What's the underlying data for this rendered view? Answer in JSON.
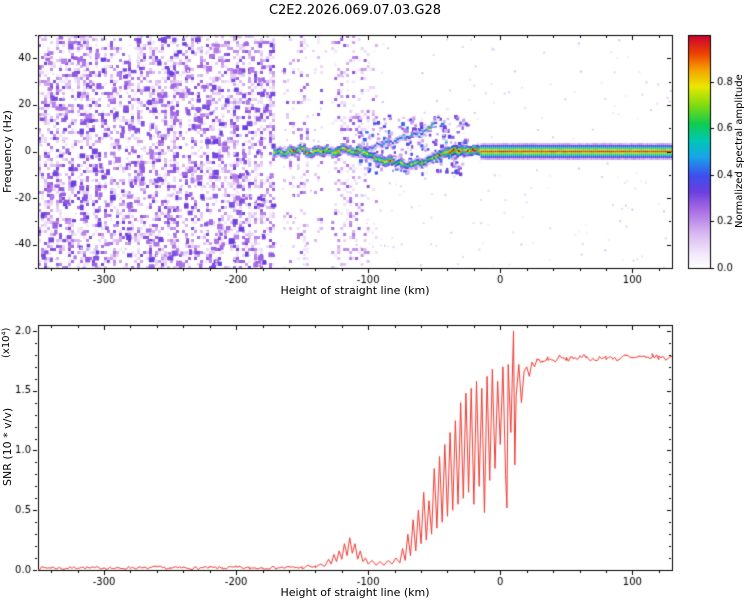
{
  "chart_data": [
    {
      "type": "heatmap",
      "title": "C2E2.2026.069.07.03.G28",
      "xlabel": "Height of straight line (km)",
      "ylabel": "Frequency (Hz)",
      "xlim": [
        -350,
        130
      ],
      "ylim": [
        -50,
        50
      ],
      "xticks": [
        -300,
        -200,
        -100,
        0,
        100
      ],
      "xtick_labels": [
        "-300",
        "-200",
        "-100",
        "0",
        "100"
      ],
      "xminor": 20,
      "yticks": [
        -40,
        -20,
        0,
        20,
        40
      ],
      "ytick_labels": [
        "-40",
        "-20",
        "0",
        "20",
        "40"
      ],
      "yminor": 10,
      "grid": false,
      "colorbar": {
        "label": "Normalized spectral amplitude",
        "range": [
          0,
          1
        ],
        "ticks": [
          0,
          0.2,
          0.4,
          0.6,
          0.8
        ],
        "tick_labels": [
          "0.0",
          "0.2",
          "0.4",
          "0.6",
          "0.8"
        ],
        "colormap": [
          {
            "p": 0.0,
            "c": "#ffffff"
          },
          {
            "p": 0.06,
            "c": "#f3eafb"
          },
          {
            "p": 0.15,
            "c": "#d9b8f0"
          },
          {
            "p": 0.25,
            "c": "#a86de4"
          },
          {
            "p": 0.33,
            "c": "#6a3fe0"
          },
          {
            "p": 0.4,
            "c": "#3c50ee"
          },
          {
            "p": 0.48,
            "c": "#18a6e8"
          },
          {
            "p": 0.55,
            "c": "#00c8b4"
          },
          {
            "p": 0.62,
            "c": "#10cc50"
          },
          {
            "p": 0.7,
            "c": "#7fdc10"
          },
          {
            "p": 0.78,
            "c": "#e8e800"
          },
          {
            "p": 0.85,
            "c": "#f5a500"
          },
          {
            "p": 0.92,
            "c": "#ee4400"
          },
          {
            "p": 1.0,
            "c": "#cc0033"
          }
        ]
      },
      "features": {
        "description": "Radio-occultation spectrogram: broadband purple noise speckle below -172 km, sparse noise curtains -165..-95 km, wavy carrier trace near 0 Hz from -172 to -16 km with multipath upper branch rising to +15 Hz near -48 km, narrow layered carrier line at 0 Hz from -15 to 130 km",
        "dense_noise": {
          "x_range": [
            -350,
            -172
          ],
          "density": 0.5,
          "value_range": [
            0.05,
            0.32
          ],
          "blob_count": 320
        },
        "noise_columns": [
          {
            "x": -160,
            "w": 9,
            "d": 0.16
          },
          {
            "x": -150,
            "w": 8,
            "d": 0.2
          },
          {
            "x": -138,
            "w": 6,
            "d": 0.1
          },
          {
            "x": -124,
            "w": 8,
            "d": 0.22
          },
          {
            "x": -114,
            "w": 10,
            "d": 0.26
          },
          {
            "x": -104,
            "w": 8,
            "d": 0.18
          },
          {
            "x": -97,
            "w": 5,
            "d": 0.1
          }
        ],
        "sparse_noise": {
          "count": 380,
          "value_range": [
            0.04,
            0.14
          ]
        },
        "trace_scatter": {
          "count": 240,
          "x_range": [
            -108,
            -26
          ],
          "f_range": [
            -9,
            16
          ],
          "value_range": [
            0.12,
            0.45
          ]
        },
        "main_trace": [
          [
            -172,
            0,
            0.7
          ],
          [
            -168,
            1,
            0.75
          ],
          [
            -164,
            -1,
            0.7
          ],
          [
            -160,
            1.5,
            0.78
          ],
          [
            -156,
            0,
            0.74
          ],
          [
            -152,
            2,
            0.7
          ],
          [
            -148,
            0.5,
            0.76
          ],
          [
            -144,
            -1,
            0.7
          ],
          [
            -140,
            1,
            0.75
          ],
          [
            -136,
            0,
            0.8
          ],
          [
            -132,
            1.5,
            0.72
          ],
          [
            -128,
            -0.5,
            0.76
          ],
          [
            -124,
            0.5,
            0.82
          ],
          [
            -120,
            2,
            0.74
          ],
          [
            -116,
            1,
            0.7
          ],
          [
            -112,
            0,
            0.75
          ],
          [
            -108,
            1,
            0.8
          ],
          [
            -104,
            0,
            0.76
          ],
          [
            -100,
            -1,
            0.72
          ],
          [
            -96,
            -2,
            0.74
          ],
          [
            -92,
            -3.5,
            0.68
          ],
          [
            -88,
            -4,
            0.72
          ],
          [
            -84,
            -3,
            0.75
          ],
          [
            -80,
            -5,
            0.68
          ],
          [
            -76,
            -4,
            0.72
          ],
          [
            -72,
            -6,
            0.66
          ],
          [
            -68,
            -5,
            0.7
          ],
          [
            -64,
            -4,
            0.68
          ],
          [
            -60,
            -5,
            0.72
          ],
          [
            -56,
            -3.5,
            0.68
          ],
          [
            -52,
            -2.5,
            0.72
          ],
          [
            -48,
            -1.5,
            0.76
          ],
          [
            -44,
            -0.5,
            0.8
          ],
          [
            -40,
            0,
            0.84
          ],
          [
            -36,
            1,
            0.85
          ],
          [
            -32,
            0.5,
            0.86
          ],
          [
            -28,
            1,
            0.88
          ],
          [
            -24,
            0.5,
            0.88
          ],
          [
            -20,
            1,
            0.9
          ],
          [
            -16,
            0.5,
            0.9
          ]
        ],
        "upper_branch": [
          [
            -98,
            2,
            0.4
          ],
          [
            -94,
            3.5,
            0.45
          ],
          [
            -90,
            3,
            0.4
          ],
          [
            -86,
            5,
            0.48
          ],
          [
            -82,
            4,
            0.42
          ],
          [
            -78,
            6,
            0.48
          ],
          [
            -74,
            7,
            0.44
          ],
          [
            -70,
            6,
            0.4
          ],
          [
            -66,
            8,
            0.48
          ],
          [
            -62,
            7,
            0.44
          ],
          [
            -58,
            9,
            0.42
          ],
          [
            -54,
            11,
            0.45
          ],
          [
            -50,
            13,
            0.42
          ],
          [
            -48,
            15,
            0.38
          ],
          [
            -46,
            11,
            0.42
          ],
          [
            -44,
            7,
            0.46
          ],
          [
            -42,
            4,
            0.5
          ],
          [
            -40,
            2,
            0.55
          ]
        ],
        "flat_line": {
          "x_range": [
            -15,
            130
          ],
          "freq": 0,
          "layers": [
            {
              "df": 0,
              "v": 0.95
            },
            {
              "df": 0.8,
              "v": 0.72
            },
            {
              "df": -0.8,
              "v": 0.72
            },
            {
              "df": 1.6,
              "v": 0.55
            },
            {
              "df": -1.6,
              "v": 0.55
            },
            {
              "df": 2.4,
              "v": 0.36
            },
            {
              "df": -2.4,
              "v": 0.36
            },
            {
              "df": 3.2,
              "v": 0.18
            },
            {
              "df": -3.2,
              "v": 0.18
            }
          ]
        }
      }
    },
    {
      "type": "line",
      "xlabel": "Height of straight line (km)",
      "ylabel": "SNR (10 * v/v)",
      "ylabel_units": "(x10⁴)",
      "xlim": [
        -350,
        130
      ],
      "ylim": [
        0,
        2.05
      ],
      "xticks": [
        -300,
        -200,
        -100,
        0,
        100
      ],
      "xtick_labels": [
        "-300",
        "-200",
        "-100",
        "0",
        "100"
      ],
      "xminor": 20,
      "yticks": [
        0,
        0.5,
        1,
        1.5,
        2
      ],
      "ytick_labels": [
        "0.0",
        "0.5",
        "1.0",
        "1.5",
        "2.0"
      ],
      "yminor": 0.1,
      "line_color": "#ef3b33",
      "jitter": [
        {
          "x_range": [
            -350,
            -140
          ],
          "amp": 0.012
        },
        {
          "x_range": [
            25,
            130
          ],
          "amp": 0.022
        }
      ],
      "points": [
        [
          -350,
          0.015
        ],
        [
          -340,
          0.02
        ],
        [
          -330,
          0.012
        ],
        [
          -320,
          0.022
        ],
        [
          -310,
          0.015
        ],
        [
          -300,
          0.02
        ],
        [
          -290,
          0.013
        ],
        [
          -280,
          0.02
        ],
        [
          -270,
          0.015
        ],
        [
          -260,
          0.022
        ],
        [
          -250,
          0.014
        ],
        [
          -240,
          0.02
        ],
        [
          -230,
          0.015
        ],
        [
          -220,
          0.02
        ],
        [
          -210,
          0.016
        ],
        [
          -200,
          0.022
        ],
        [
          -190,
          0.015
        ],
        [
          -180,
          0.02
        ],
        [
          -170,
          0.018
        ],
        [
          -160,
          0.022
        ],
        [
          -150,
          0.02
        ],
        [
          -145,
          0.03
        ],
        [
          -140,
          0.025
        ],
        [
          -136,
          0.05
        ],
        [
          -133,
          0.03
        ],
        [
          -130,
          0.09
        ],
        [
          -128,
          0.05
        ],
        [
          -126,
          0.13
        ],
        [
          -124,
          0.07
        ],
        [
          -122,
          0.16
        ],
        [
          -120,
          0.09
        ],
        [
          -118,
          0.22
        ],
        [
          -116,
          0.12
        ],
        [
          -114,
          0.27
        ],
        [
          -112,
          0.14
        ],
        [
          -110,
          0.22
        ],
        [
          -108,
          0.09
        ],
        [
          -106,
          0.16
        ],
        [
          -104,
          0.07
        ],
        [
          -102,
          0.1
        ],
        [
          -100,
          0.05
        ],
        [
          -97,
          0.08
        ],
        [
          -94,
          0.04
        ],
        [
          -91,
          0.07
        ],
        [
          -88,
          0.04
        ],
        [
          -85,
          0.08
        ],
        [
          -82,
          0.05
        ],
        [
          -79,
          0.1
        ],
        [
          -76,
          0.06
        ],
        [
          -74,
          0.18
        ],
        [
          -72,
          0.08
        ],
        [
          -70,
          0.3
        ],
        [
          -68,
          0.12
        ],
        [
          -66,
          0.42
        ],
        [
          -64,
          0.16
        ],
        [
          -62,
          0.5
        ],
        [
          -60,
          0.22
        ],
        [
          -58,
          0.65
        ],
        [
          -56,
          0.25
        ],
        [
          -54,
          0.58
        ],
        [
          -52,
          0.3
        ],
        [
          -50,
          0.85
        ],
        [
          -48,
          0.35
        ],
        [
          -46,
          0.95
        ],
        [
          -44,
          0.4
        ],
        [
          -42,
          1.05
        ],
        [
          -40,
          0.45
        ],
        [
          -38,
          1.15
        ],
        [
          -36,
          0.5
        ],
        [
          -34,
          1.25
        ],
        [
          -32,
          0.55
        ],
        [
          -30,
          1.4
        ],
        [
          -28,
          0.6
        ],
        [
          -26,
          1.48
        ],
        [
          -24,
          0.65
        ],
        [
          -22,
          1.52
        ],
        [
          -20,
          0.55
        ],
        [
          -18,
          1.58
        ],
        [
          -16,
          0.7
        ],
        [
          -14,
          1.52
        ],
        [
          -12,
          0.48
        ],
        [
          -10,
          1.62
        ],
        [
          -8,
          0.75
        ],
        [
          -6,
          1.68
        ],
        [
          -4,
          0.85
        ],
        [
          -2,
          1.58
        ],
        [
          0,
          1.05
        ],
        [
          2,
          1.7
        ],
        [
          4,
          0.8
        ],
        [
          5,
          0.52
        ],
        [
          6,
          1.72
        ],
        [
          8,
          1.15
        ],
        [
          10,
          2.0
        ],
        [
          11,
          0.88
        ],
        [
          12,
          1.45
        ],
        [
          14,
          1.72
        ],
        [
          16,
          1.4
        ],
        [
          18,
          1.66
        ],
        [
          20,
          1.7
        ],
        [
          22,
          1.62
        ],
        [
          24,
          1.74
        ],
        [
          26,
          1.7
        ],
        [
          28,
          1.76
        ],
        [
          32,
          1.74
        ],
        [
          36,
          1.77
        ],
        [
          40,
          1.75
        ],
        [
          45,
          1.78
        ],
        [
          50,
          1.76
        ],
        [
          55,
          1.78
        ],
        [
          60,
          1.77
        ],
        [
          65,
          1.79
        ],
        [
          70,
          1.76
        ],
        [
          75,
          1.78
        ],
        [
          80,
          1.77
        ],
        [
          85,
          1.78
        ],
        [
          90,
          1.76
        ],
        [
          95,
          1.79
        ],
        [
          100,
          1.77
        ],
        [
          105,
          1.78
        ],
        [
          110,
          1.77
        ],
        [
          115,
          1.79
        ],
        [
          120,
          1.78
        ],
        [
          125,
          1.77
        ],
        [
          130,
          1.78
        ]
      ]
    }
  ]
}
